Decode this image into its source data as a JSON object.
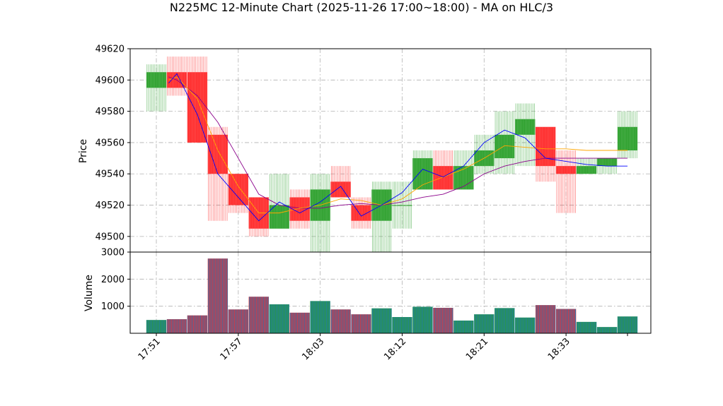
{
  "chart_data": {
    "type": "candlestick",
    "title": "N225MC 12-Minute Chart (2025-11-26 17:00~18:00) - MA on HLC/3",
    "price_panel": {
      "ylabel": "Price",
      "ylim": [
        49490,
        49620
      ],
      "yticks": [
        49500,
        49520,
        49540,
        49560,
        49580,
        49600,
        49620
      ]
    },
    "volume_panel": {
      "ylabel": "Volume",
      "ylim": [
        0,
        3000
      ],
      "yticks": [
        1000,
        2000,
        3000
      ]
    },
    "x_tick_labels": [
      "17:51",
      "17:57",
      "18:03",
      "18:12",
      "18:21",
      "18:33"
    ],
    "grid": true,
    "colors": {
      "up": "#2ca02c",
      "down": "#ff2a2a",
      "ma_fast": "#0000ff",
      "ma_mid": "#ffa500",
      "ma_slow": "#8b008b",
      "volume": "#1f77b4"
    },
    "candles": [
      {
        "o": 49595,
        "h": 49610,
        "l": 49580,
        "c": 49605,
        "v": 490
      },
      {
        "o": 49605,
        "h": 49615,
        "l": 49590,
        "c": 49595,
        "v": 520
      },
      {
        "o": 49605,
        "h": 49615,
        "l": 49560,
        "c": 49560,
        "v": 660
      },
      {
        "o": 49565,
        "h": 49570,
        "l": 49510,
        "c": 49540,
        "v": 2760
      },
      {
        "o": 49540,
        "h": 49540,
        "l": 49515,
        "c": 49520,
        "v": 880
      },
      {
        "o": 49525,
        "h": 49525,
        "l": 49500,
        "c": 49505,
        "v": 1350
      },
      {
        "o": 49505,
        "h": 49540,
        "l": 49505,
        "c": 49520,
        "v": 1070
      },
      {
        "o": 49525,
        "h": 49530,
        "l": 49505,
        "c": 49510,
        "v": 760
      },
      {
        "o": 49510,
        "h": 49540,
        "l": 49490,
        "c": 49530,
        "v": 1190
      },
      {
        "o": 49535,
        "h": 49545,
        "l": 49525,
        "c": 49525,
        "v": 880
      },
      {
        "o": 49520,
        "h": 49525,
        "l": 49505,
        "c": 49510,
        "v": 700
      },
      {
        "o": 49510,
        "h": 49535,
        "l": 49490,
        "c": 49530,
        "v": 920
      },
      {
        "o": 49520,
        "h": 49535,
        "l": 49505,
        "c": 49520,
        "v": 600
      },
      {
        "o": 49530,
        "h": 49555,
        "l": 49530,
        "c": 49550,
        "v": 980
      },
      {
        "o": 49545,
        "h": 49555,
        "l": 49530,
        "c": 49530,
        "v": 940
      },
      {
        "o": 49530,
        "h": 49555,
        "l": 49530,
        "c": 49545,
        "v": 470
      },
      {
        "o": 49545,
        "h": 49565,
        "l": 49540,
        "c": 49555,
        "v": 700
      },
      {
        "o": 49550,
        "h": 49580,
        "l": 49540,
        "c": 49565,
        "v": 930
      },
      {
        "o": 49565,
        "h": 49585,
        "l": 49545,
        "c": 49575,
        "v": 580
      },
      {
        "o": 49570,
        "h": 49570,
        "l": 49535,
        "c": 49545,
        "v": 1040
      },
      {
        "o": 49545,
        "h": 49555,
        "l": 49515,
        "c": 49540,
        "v": 900
      },
      {
        "o": 49540,
        "h": 49550,
        "l": 49540,
        "c": 49545,
        "v": 420
      },
      {
        "o": 49545,
        "h": 49550,
        "l": 49540,
        "c": 49550,
        "v": 230
      },
      {
        "o": 49555,
        "h": 49580,
        "l": 49550,
        "c": 49570,
        "v": 620
      }
    ],
    "ma_fast": [
      49598,
      49604,
      49578,
      49540,
      49525,
      49510,
      49522,
      49515,
      49522,
      49532,
      49513,
      49520,
      49528,
      49543,
      49538,
      49545,
      49560,
      49568,
      49563,
      49550,
      49548,
      49546,
      49545,
      49545
    ],
    "ma_mid": [
      49600,
      49602,
      49588,
      49555,
      49532,
      49515,
      49515,
      49518,
      49520,
      49524,
      49523,
      49520,
      49524,
      49533,
      49538,
      49543,
      49550,
      49558,
      49557,
      49556,
      49556,
      49555,
      49555,
      49555
    ],
    "ma_slow": [
      49602,
      49600,
      49590,
      49573,
      49550,
      49527,
      49520,
      49518,
      49518,
      49520,
      49521,
      49520,
      49522,
      49525,
      49527,
      49532,
      49540,
      49545,
      49548,
      49550,
      49550,
      49550,
      49550,
      49550
    ]
  }
}
